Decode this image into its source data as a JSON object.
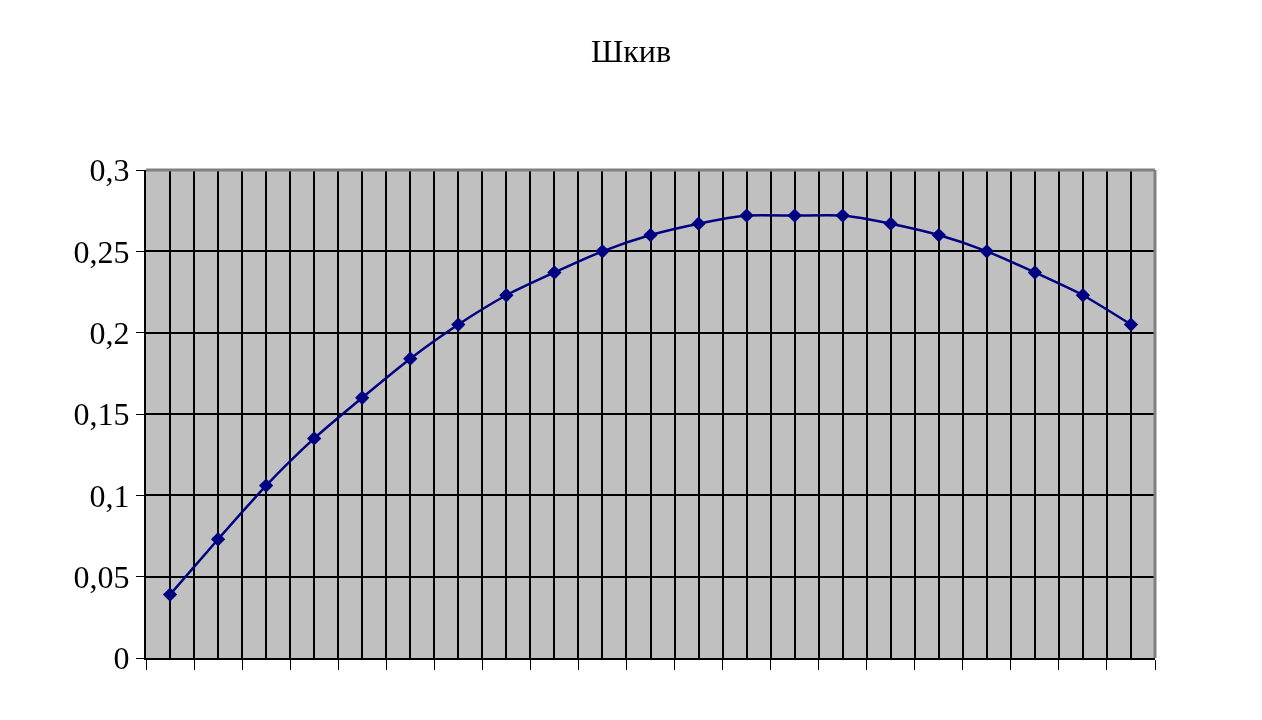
{
  "chart_data": {
    "type": "line",
    "title": "Шкив",
    "categories": [
      null,
      null,
      null,
      null,
      null,
      null,
      null,
      null,
      null,
      null,
      null,
      null,
      null,
      null,
      null,
      null,
      null,
      null,
      null,
      null,
      null
    ],
    "series": [
      {
        "color": "#000080",
        "values": [
          0.039,
          0.073,
          0.106,
          0.135,
          0.16,
          0.184,
          0.205,
          0.223,
          0.237,
          0.25,
          0.26,
          0.267,
          0.272,
          0.272,
          0.272,
          0.267,
          0.26,
          0.25,
          0.237,
          0.223,
          0.205
        ]
      }
    ],
    "ylim": [
      0,
      0.3
    ],
    "yticks": [
      0,
      {
        "value": 0.05,
        "label": "0,05"
      },
      {
        "value": 0.1,
        "label": "0,1"
      },
      {
        "value": 0.15,
        "label": "0,15"
      },
      {
        "value": 0.2,
        "label": "0,2"
      },
      {
        "value": 0.25,
        "label": "0,25"
      },
      {
        "value": 0.3,
        "label": "0,3"
      }
    ],
    "grid": true,
    "marker": "diamond",
    "line_style": "solid",
    "tick_labels": "y"
  }
}
